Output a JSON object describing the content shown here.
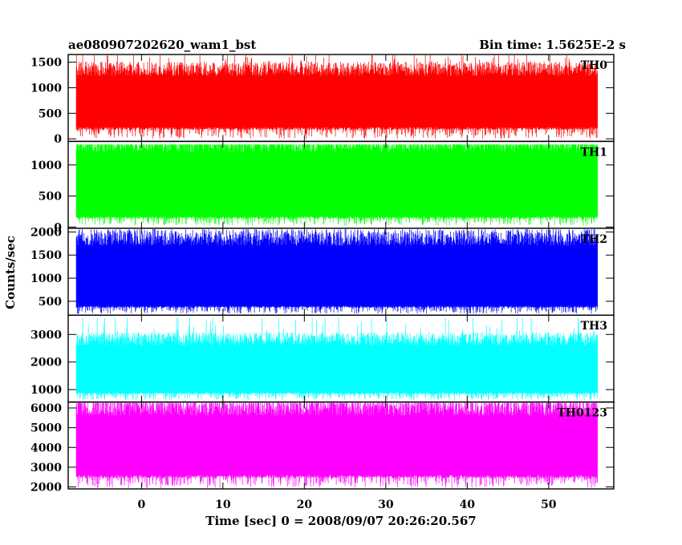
{
  "header": {
    "title": "ae080907202620_wam1_bst",
    "bin_time": "Bin time: 1.5625E-2 s"
  },
  "chart_data": {
    "type": "line",
    "xlabel": "Time [sec] 0 = 2008/09/07 20:26:20.567",
    "ylabel": "Counts/sec",
    "xlim": [
      -9,
      58
    ],
    "data_range": [
      -8,
      56
    ],
    "xticks": [
      0,
      10,
      20,
      30,
      40,
      50
    ],
    "grid": false,
    "panels": [
      {
        "name": "TH0",
        "color": "#ff0000",
        "ylim": [
          -50,
          1650
        ],
        "yticks": [
          0,
          500,
          1000,
          1500
        ],
        "mean": 700,
        "min": 0,
        "max": 1640,
        "typical_low": 230,
        "typical_high": 1230
      },
      {
        "name": "TH1",
        "color": "#00ff00",
        "ylim": [
          -20,
          1380
        ],
        "yticks": [
          0,
          500,
          1000
        ],
        "mean": 700,
        "min": 20,
        "max": 1330,
        "typical_low": 170,
        "typical_high": 1200
      },
      {
        "name": "TH2",
        "color": "#0000ff",
        "ylim": [
          200,
          2080
        ],
        "yticks": [
          500,
          1000,
          1500,
          2000
        ],
        "mean": 1000,
        "min": 230,
        "max": 2060,
        "typical_low": 400,
        "typical_high": 1700
      },
      {
        "name": "TH3",
        "color": "#00ffff",
        "ylim": [
          550,
          3700
        ],
        "yticks": [
          1000,
          2000,
          3000
        ],
        "mean": 1700,
        "min": 620,
        "max": 3600,
        "typical_low": 900,
        "typical_high": 2600
      },
      {
        "name": "TH0123",
        "color": "#ff00ff",
        "ylim": [
          1900,
          6300
        ],
        "yticks": [
          2000,
          3000,
          4000,
          5000,
          6000
        ],
        "mean": 4100,
        "min": 1950,
        "max": 6250,
        "typical_low": 2600,
        "typical_high": 5600
      }
    ]
  }
}
